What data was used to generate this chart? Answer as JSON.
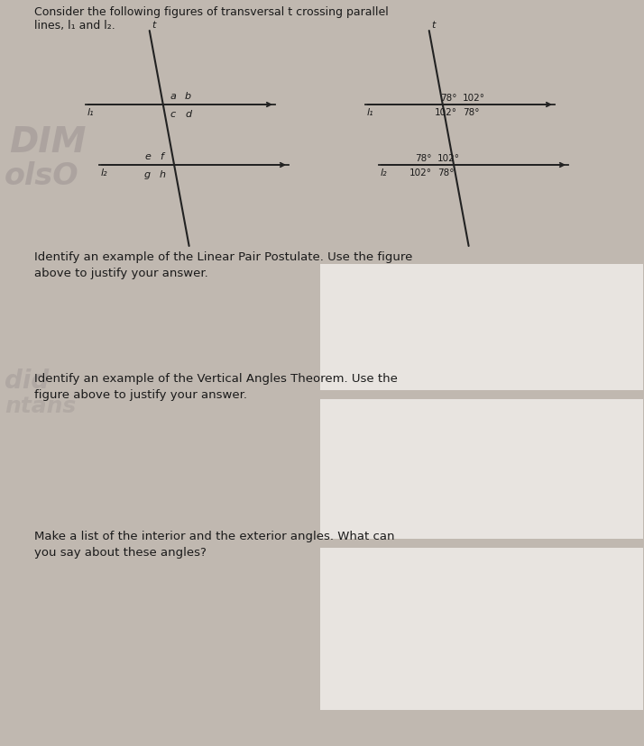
{
  "bg_left": "#b8b0a4",
  "bg_right": "#d8d0c8",
  "bg_overall": "#c0b8b0",
  "text_color": "#1a1a1a",
  "title_text": "Consider the following figures of transversal t crossing parallel\nlines, l₁ and l₂.",
  "q1_text": "Identify an example of the Linear Pair Postulate. Use the figure\nabove to justify your answer.",
  "q2_text": "Identify an example of the Vertical Angles Theorem. Use the\nfigure above to justify your answer.",
  "q3_text": "Make a list of the interior and the exterior angles. What can\nyou say about these angles?",
  "watermark_texts": [
    "DIM",
    "olsO"
  ],
  "watermark_texts2": [
    "did",
    "ntans"
  ],
  "line_color": "#222222",
  "answer_box_color": "#e8e4e0",
  "font_size_title": 9.0,
  "font_size_q": 9.5,
  "font_size_label": 8.0,
  "font_size_angle": 7.5,
  "fig1": {
    "l1_label": "l₁",
    "l2_label": "l₂",
    "t_label": "t",
    "angle_labels_top": [
      "a",
      "b",
      "c",
      "d"
    ],
    "angle_labels_bot": [
      "e",
      "f",
      "g",
      "h"
    ]
  },
  "fig2": {
    "l1_label": "l₁",
    "l2_label": "l₂",
    "t_label": "t",
    "angles_top_ul": "78°",
    "angles_top_ur": "102°",
    "angles_top_ll": "102°",
    "angles_top_lr": "78°",
    "angles_bot_ul": "78°",
    "angles_bot_ur": "102°",
    "angles_bot_ll": "102°",
    "angles_bot_lr": "78°"
  }
}
